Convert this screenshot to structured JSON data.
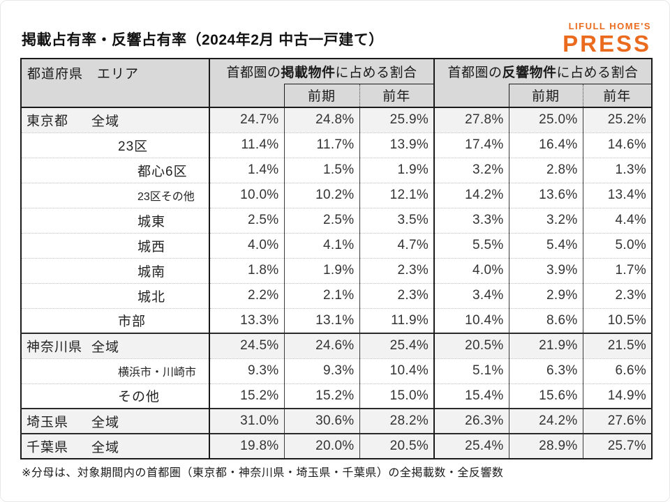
{
  "title": "掲載占有率・反響占有率（2024年2月 中古一戸建て）",
  "logo": {
    "line1": "LIFULL HOME'S",
    "line2": "PRESS"
  },
  "colors": {
    "accent_orange": "#EB6B1E",
    "header_bg": "#D9D9D9",
    "shaded_row_bg": "#F2F2F2",
    "border_dark": "#1A1A1A"
  },
  "footnote": "※分母は、対象期間内の首都圏（東京都・神奈川県・埼玉県・千葉県）の全掲載数・全反響数",
  "table": {
    "corner_header": "都道府県　エリア",
    "groups": [
      {
        "prefix": "首都圏の",
        "strong": "掲載物件",
        "suffix": "に占める割合"
      },
      {
        "prefix": "首都圏の",
        "strong": "反響物件",
        "suffix": "に占める割合"
      }
    ],
    "sub_headers": [
      "前期",
      "前年"
    ],
    "value_column_names": [
      "listing-current",
      "listing-prev-period",
      "listing-prev-year",
      "response-current",
      "response-prev-period",
      "response-prev-year"
    ],
    "rows": [
      {
        "pref": "東京都",
        "area": "全域",
        "indent": 1,
        "small": false,
        "shaded": true,
        "block_start": false,
        "values": [
          "24.7%",
          "24.8%",
          "25.9%",
          "27.8%",
          "25.0%",
          "25.2%"
        ]
      },
      {
        "pref": "",
        "area": "23区",
        "indent": 2,
        "small": false,
        "shaded": false,
        "block_start": false,
        "values": [
          "11.4%",
          "11.7%",
          "13.9%",
          "17.4%",
          "16.4%",
          "14.6%"
        ]
      },
      {
        "pref": "",
        "area": "都心6区",
        "indent": 3,
        "small": false,
        "shaded": false,
        "block_start": false,
        "values": [
          "1.4%",
          "1.5%",
          "1.9%",
          "3.2%",
          "2.8%",
          "1.3%"
        ]
      },
      {
        "pref": "",
        "area": "23区その他",
        "indent": 3,
        "small": true,
        "shaded": false,
        "block_start": false,
        "values": [
          "10.0%",
          "10.2%",
          "12.1%",
          "14.2%",
          "13.6%",
          "13.4%"
        ]
      },
      {
        "pref": "",
        "area": "城東",
        "indent": 3,
        "small": false,
        "shaded": false,
        "block_start": false,
        "values": [
          "2.5%",
          "2.5%",
          "3.5%",
          "3.3%",
          "3.2%",
          "4.4%"
        ]
      },
      {
        "pref": "",
        "area": "城西",
        "indent": 3,
        "small": false,
        "shaded": false,
        "block_start": false,
        "values": [
          "4.0%",
          "4.1%",
          "4.7%",
          "5.5%",
          "5.4%",
          "5.0%"
        ]
      },
      {
        "pref": "",
        "area": "城南",
        "indent": 3,
        "small": false,
        "shaded": false,
        "block_start": false,
        "values": [
          "1.8%",
          "1.9%",
          "2.3%",
          "4.0%",
          "3.9%",
          "1.7%"
        ]
      },
      {
        "pref": "",
        "area": "城北",
        "indent": 3,
        "small": false,
        "shaded": false,
        "block_start": false,
        "values": [
          "2.2%",
          "2.1%",
          "2.3%",
          "3.4%",
          "2.9%",
          "2.3%"
        ]
      },
      {
        "pref": "",
        "area": "市部",
        "indent": 2,
        "small": false,
        "shaded": false,
        "block_start": false,
        "values": [
          "13.3%",
          "13.1%",
          "11.9%",
          "10.4%",
          "8.6%",
          "10.5%"
        ]
      },
      {
        "pref": "神奈川県",
        "area": "全域",
        "indent": 1,
        "small": false,
        "shaded": true,
        "block_start": true,
        "values": [
          "24.5%",
          "24.6%",
          "25.4%",
          "20.5%",
          "21.9%",
          "21.5%"
        ]
      },
      {
        "pref": "",
        "area": "横浜市・川崎市",
        "indent": 2,
        "small": true,
        "shaded": false,
        "block_start": false,
        "values": [
          "9.3%",
          "9.3%",
          "10.4%",
          "5.1%",
          "6.3%",
          "6.6%"
        ]
      },
      {
        "pref": "",
        "area": "その他",
        "indent": 2,
        "small": false,
        "shaded": false,
        "block_start": false,
        "values": [
          "15.2%",
          "15.2%",
          "15.0%",
          "15.4%",
          "15.6%",
          "14.9%"
        ]
      },
      {
        "pref": "埼玉県",
        "area": "全域",
        "indent": 1,
        "small": false,
        "shaded": true,
        "block_start": true,
        "values": [
          "31.0%",
          "30.6%",
          "28.2%",
          "26.3%",
          "24.2%",
          "27.6%"
        ]
      },
      {
        "pref": "千葉県",
        "area": "全域",
        "indent": 1,
        "small": false,
        "shaded": true,
        "block_start": true,
        "values": [
          "19.8%",
          "20.0%",
          "20.5%",
          "25.4%",
          "28.9%",
          "25.7%"
        ]
      }
    ]
  }
}
